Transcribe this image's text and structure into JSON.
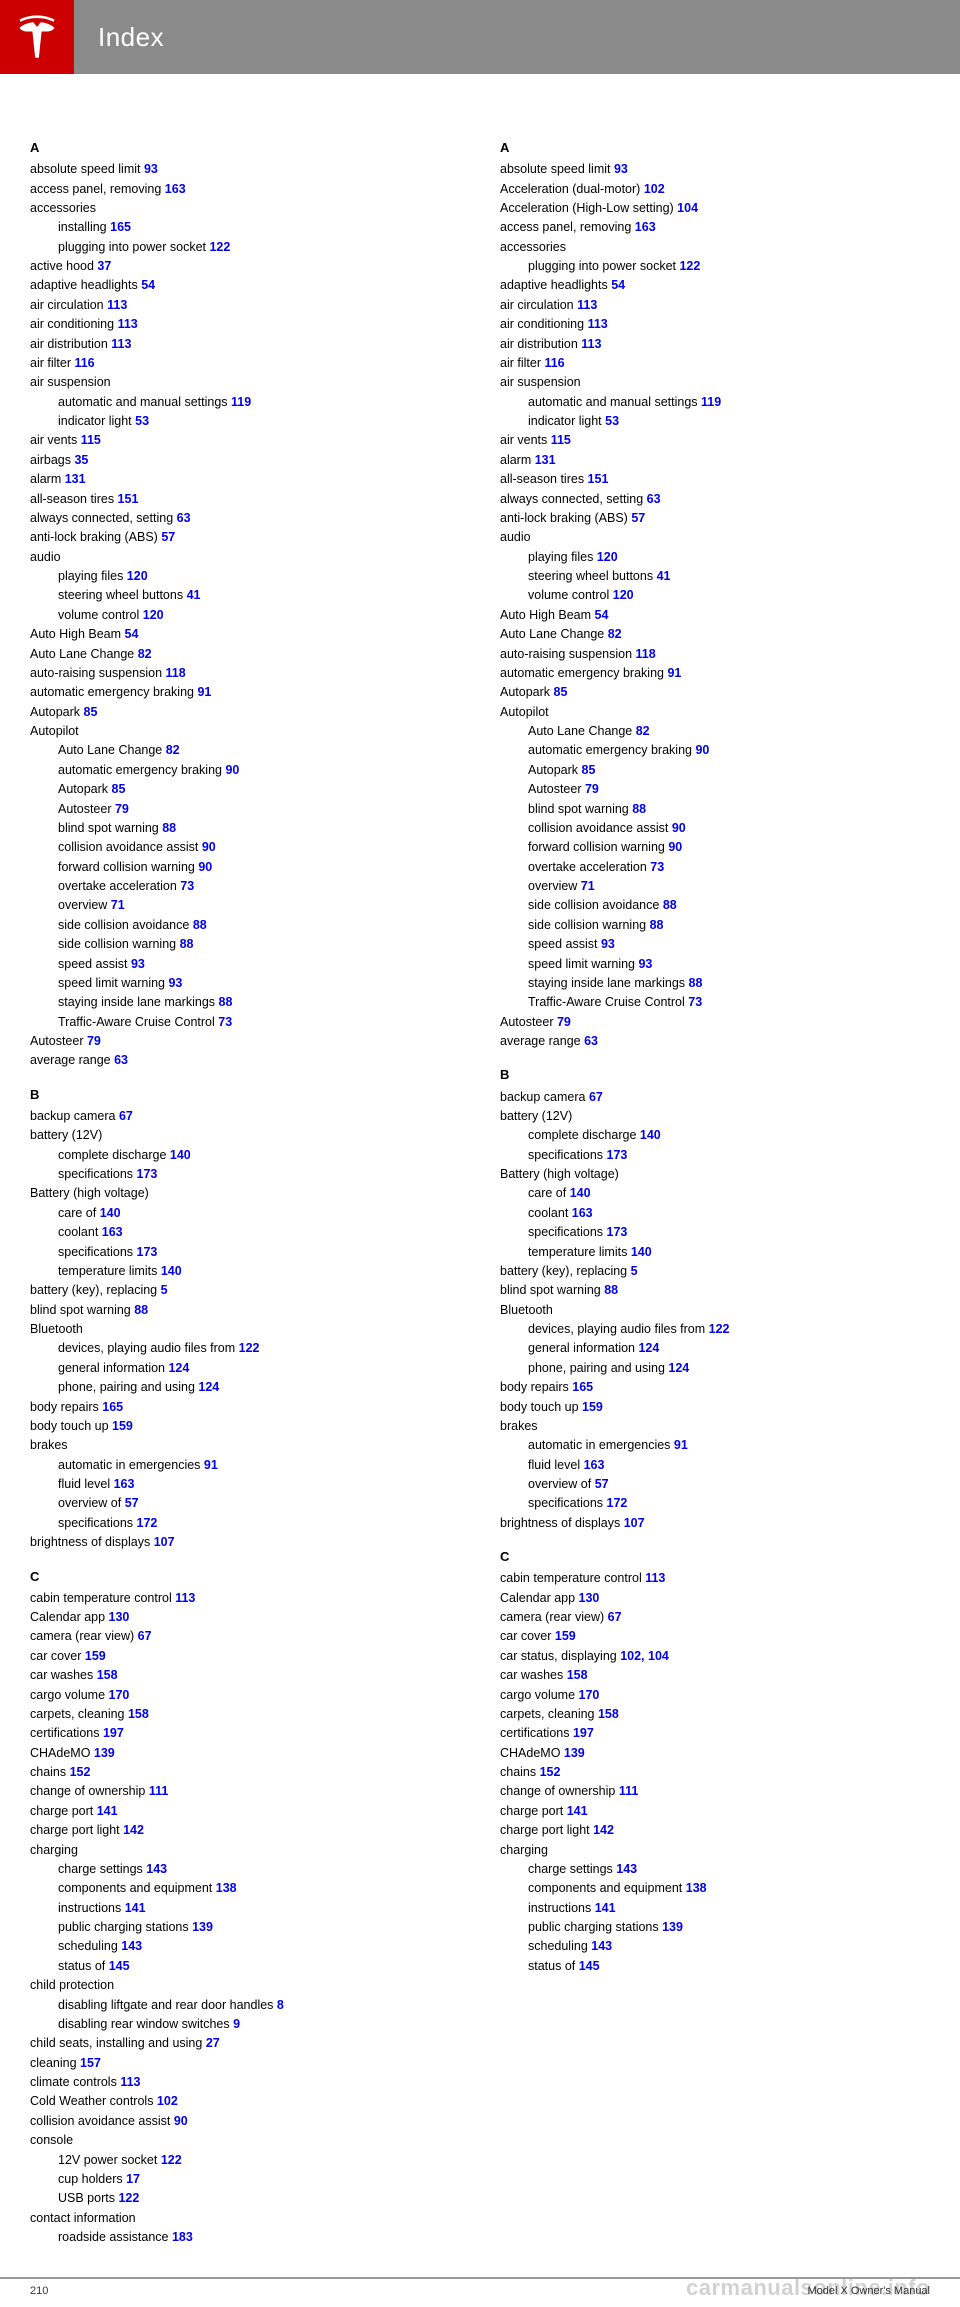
{
  "header": {
    "title": "Index"
  },
  "footer": {
    "page": "210",
    "manual": "Model X Owner's Manual",
    "watermark": "carmanualsonline.info"
  },
  "sections": {
    "A": "A",
    "B": "B",
    "C": "C"
  },
  "col1": [
    {
      "t": "absolute speed limit ",
      "p": "93",
      "cls": ""
    },
    {
      "t": "access panel, removing ",
      "p": "163",
      "cls": ""
    },
    {
      "t": "accessories",
      "cls": ""
    },
    {
      "t": "installing ",
      "p": "165",
      "cls": "indent"
    },
    {
      "t": "plugging into power socket ",
      "p": "122",
      "cls": "indent"
    },
    {
      "t": "active hood ",
      "p": "37",
      "cls": ""
    },
    {
      "t": "adaptive headlights ",
      "p": "54",
      "cls": ""
    },
    {
      "t": "air circulation ",
      "p": "113",
      "cls": ""
    },
    {
      "t": "air conditioning ",
      "p": "113",
      "cls": ""
    },
    {
      "t": "air distribution ",
      "p": "113",
      "cls": ""
    },
    {
      "t": "air filter ",
      "p": "116",
      "cls": ""
    },
    {
      "t": "air suspension",
      "cls": ""
    },
    {
      "t": "automatic and manual settings ",
      "p": "119",
      "cls": "indent"
    },
    {
      "t": "indicator light ",
      "p": "53",
      "cls": "indent"
    },
    {
      "t": "air vents ",
      "p": "115",
      "cls": ""
    },
    {
      "t": "airbags ",
      "p": "35",
      "cls": ""
    },
    {
      "t": "alarm ",
      "p": "131",
      "cls": ""
    },
    {
      "t": "all-season tires ",
      "p": "151",
      "cls": ""
    },
    {
      "t": "always connected, setting ",
      "p": "63",
      "cls": ""
    },
    {
      "t": "anti-lock braking (ABS) ",
      "p": "57",
      "cls": ""
    },
    {
      "t": "audio",
      "cls": ""
    },
    {
      "t": "playing files ",
      "p": "120",
      "cls": "indent"
    },
    {
      "t": "steering wheel buttons ",
      "p": "41",
      "cls": "indent"
    },
    {
      "t": "volume control ",
      "p": "120",
      "cls": "indent"
    },
    {
      "t": "Auto High Beam ",
      "p": "54",
      "cls": ""
    },
    {
      "t": "Auto Lane Change ",
      "p": "82",
      "cls": ""
    },
    {
      "t": "auto-raising suspension ",
      "p": "118",
      "cls": ""
    },
    {
      "t": "automatic emergency braking ",
      "p": "91",
      "cls": ""
    },
    {
      "t": "Autopark ",
      "p": "85",
      "cls": ""
    },
    {
      "t": "Autopilot",
      "cls": ""
    },
    {
      "t": "Auto Lane Change ",
      "p": "82",
      "cls": "indent"
    },
    {
      "t": "automatic emergency braking ",
      "p": "90",
      "cls": "indent"
    },
    {
      "t": "Autopark ",
      "p": "85",
      "cls": "indent"
    },
    {
      "t": "Autosteer ",
      "p": "79",
      "cls": "indent"
    },
    {
      "t": "blind spot warning ",
      "p": "88",
      "cls": "indent"
    },
    {
      "t": "collision avoidance assist ",
      "p": "90",
      "cls": "indent"
    },
    {
      "t": "forward collision warning ",
      "p": "90",
      "cls": "indent"
    },
    {
      "t": "overtake acceleration ",
      "p": "73",
      "cls": "indent"
    },
    {
      "t": "overview ",
      "p": "71",
      "cls": "indent"
    },
    {
      "t": "side collision avoidance ",
      "p": "88",
      "cls": "indent"
    },
    {
      "t": "side collision warning ",
      "p": "88",
      "cls": "indent"
    },
    {
      "t": "speed assist ",
      "p": "93",
      "cls": "indent"
    },
    {
      "t": "speed limit warning ",
      "p": "93",
      "cls": "indent"
    },
    {
      "t": "staying inside lane markings ",
      "p": "88",
      "cls": "indent"
    },
    {
      "t": "Traffic-Aware Cruise Control ",
      "p": "73",
      "cls": "indent"
    },
    {
      "t": "Autosteer ",
      "p": "79",
      "cls": ""
    },
    {
      "t": "average range ",
      "p": "63",
      "cls": ""
    },
    {
      "t": "section",
      "letter": "B"
    },
    {
      "t": "backup camera ",
      "p": "67",
      "cls": ""
    },
    {
      "t": "battery (12V)",
      "cls": ""
    },
    {
      "t": "complete discharge ",
      "p": "140",
      "cls": "indent"
    },
    {
      "t": "specifications ",
      "p": "173",
      "cls": "indent"
    },
    {
      "t": "Battery (high voltage)",
      "cls": ""
    },
    {
      "t": "care of ",
      "p": "140",
      "cls": "indent"
    },
    {
      "t": "coolant ",
      "p": "163",
      "cls": "indent"
    },
    {
      "t": "specifications ",
      "p": "173",
      "cls": "indent"
    },
    {
      "t": "temperature limits ",
      "p": "140",
      "cls": "indent"
    },
    {
      "t": "battery (key), replacing ",
      "p": "5",
      "cls": ""
    },
    {
      "t": "blind spot warning ",
      "p": "88",
      "cls": ""
    },
    {
      "t": "Bluetooth",
      "cls": ""
    },
    {
      "t": "devices, playing audio files from ",
      "p": "122",
      "cls": "indent"
    },
    {
      "t": "general information ",
      "p": "124",
      "cls": "indent"
    },
    {
      "t": "phone, pairing and using ",
      "p": "124",
      "cls": "indent"
    },
    {
      "t": "body repairs ",
      "p": "165",
      "cls": ""
    },
    {
      "t": "body touch up ",
      "p": "159",
      "cls": ""
    },
    {
      "t": "brakes",
      "cls": ""
    },
    {
      "t": "automatic in emergencies ",
      "p": "91",
      "cls": "indent"
    },
    {
      "t": "fluid level ",
      "p": "163",
      "cls": "indent"
    },
    {
      "t": "overview of ",
      "p": "57",
      "cls": "indent"
    },
    {
      "t": "specifications ",
      "p": "172",
      "cls": "indent"
    },
    {
      "t": "brightness of displays ",
      "p": "107",
      "cls": ""
    },
    {
      "t": "section",
      "letter": "C"
    },
    {
      "t": "cabin temperature control ",
      "p": "113",
      "cls": ""
    },
    {
      "t": "Calendar app ",
      "p": "130",
      "cls": ""
    },
    {
      "t": "camera (rear view) ",
      "p": "67",
      "cls": ""
    },
    {
      "t": "car cover ",
      "p": "159",
      "cls": ""
    },
    {
      "t": "car washes ",
      "p": "158",
      "cls": ""
    },
    {
      "t": "cargo volume ",
      "p": "170",
      "cls": ""
    },
    {
      "t": "carpets, cleaning ",
      "p": "158",
      "cls": ""
    },
    {
      "t": "certifications ",
      "p": "197",
      "cls": ""
    },
    {
      "t": "CHAdeMO ",
      "p": "139",
      "cls": ""
    },
    {
      "t": "chains ",
      "p": "152",
      "cls": ""
    },
    {
      "t": "change of ownership ",
      "p": "111",
      "cls": ""
    },
    {
      "t": "charge port ",
      "p": "141",
      "cls": ""
    },
    {
      "t": "charge port light ",
      "p": "142",
      "cls": ""
    },
    {
      "t": "charging",
      "cls": ""
    },
    {
      "t": "charge settings ",
      "p": "143",
      "cls": "indent"
    },
    {
      "t": "components and equipment ",
      "p": "138",
      "cls": "indent"
    },
    {
      "t": "instructions ",
      "p": "141",
      "cls": "indent"
    },
    {
      "t": "public charging stations ",
      "p": "139",
      "cls": "indent"
    },
    {
      "t": "scheduling ",
      "p": "143",
      "cls": "indent"
    },
    {
      "t": "status of ",
      "p": "145",
      "cls": "indent"
    },
    {
      "t": "child protection",
      "cls": ""
    },
    {
      "t": "disabling liftgate and rear door handles ",
      "p": "8",
      "cls": "indent"
    },
    {
      "t": "disabling rear window switches ",
      "p": "9",
      "cls": "indent"
    },
    {
      "t": "child seats, installing and using ",
      "p": "27",
      "cls": ""
    },
    {
      "t": "cleaning ",
      "p": "157",
      "cls": ""
    },
    {
      "t": "climate controls ",
      "p": "113",
      "cls": ""
    },
    {
      "t": "Cold Weather controls ",
      "p": "102",
      "cls": ""
    },
    {
      "t": "collision avoidance assist ",
      "p": "90",
      "cls": ""
    },
    {
      "t": "console",
      "cls": ""
    },
    {
      "t": "12V power socket ",
      "p": "122",
      "cls": "indent"
    },
    {
      "t": "cup holders ",
      "p": "17",
      "cls": "indent"
    },
    {
      "t": "USB ports ",
      "p": "122",
      "cls": "indent"
    },
    {
      "t": "contact information",
      "cls": ""
    },
    {
      "t": "roadside assistance ",
      "p": "183",
      "cls": "indent"
    }
  ],
  "col2": [
    {
      "t": "absolute speed limit ",
      "p": "93",
      "cls": ""
    },
    {
      "t": "Acceleration (dual-motor) ",
      "p": "102",
      "cls": ""
    },
    {
      "t": "Acceleration (High-Low setting) ",
      "p": "104",
      "cls": ""
    },
    {
      "t": "access panel, removing ",
      "p": "163",
      "cls": ""
    },
    {
      "t": "accessories",
      "cls": ""
    },
    {
      "t": "plugging into power socket ",
      "p": "122",
      "cls": "indent"
    },
    {
      "t": "adaptive headlights ",
      "p": "54",
      "cls": ""
    },
    {
      "t": "air circulation ",
      "p": "113",
      "cls": ""
    },
    {
      "t": "air conditioning ",
      "p": "113",
      "cls": ""
    },
    {
      "t": "air distribution ",
      "p": "113",
      "cls": ""
    },
    {
      "t": "air filter ",
      "p": "116",
      "cls": ""
    },
    {
      "t": "air suspension",
      "cls": ""
    },
    {
      "t": "automatic and manual settings ",
      "p": "119",
      "cls": "indent"
    },
    {
      "t": "indicator light ",
      "p": "53",
      "cls": "indent"
    },
    {
      "t": "air vents ",
      "p": "115",
      "cls": ""
    },
    {
      "t": "alarm ",
      "p": "131",
      "cls": ""
    },
    {
      "t": "all-season tires ",
      "p": "151",
      "cls": ""
    },
    {
      "t": "always connected, setting ",
      "p": "63",
      "cls": ""
    },
    {
      "t": "anti-lock braking (ABS) ",
      "p": "57",
      "cls": ""
    },
    {
      "t": "audio",
      "cls": ""
    },
    {
      "t": "playing files ",
      "p": "120",
      "cls": "indent"
    },
    {
      "t": "steering wheel buttons ",
      "p": "41",
      "cls": "indent"
    },
    {
      "t": "volume control ",
      "p": "120",
      "cls": "indent"
    },
    {
      "t": "Auto High Beam ",
      "p": "54",
      "cls": ""
    },
    {
      "t": "Auto Lane Change ",
      "p": "82",
      "cls": ""
    },
    {
      "t": "auto-raising suspension ",
      "p": "118",
      "cls": ""
    },
    {
      "t": "automatic emergency braking ",
      "p": "91",
      "cls": ""
    },
    {
      "t": "Autopark ",
      "p": "85",
      "cls": ""
    },
    {
      "t": "Autopilot",
      "cls": ""
    },
    {
      "t": "Auto Lane Change ",
      "p": "82",
      "cls": "indent"
    },
    {
      "t": "automatic emergency braking ",
      "p": "90",
      "cls": "indent"
    },
    {
      "t": "Autopark ",
      "p": "85",
      "cls": "indent"
    },
    {
      "t": "Autosteer ",
      "p": "79",
      "cls": "indent"
    },
    {
      "t": "blind spot warning ",
      "p": "88",
      "cls": "indent"
    },
    {
      "t": "collision avoidance assist ",
      "p": "90",
      "cls": "indent"
    },
    {
      "t": "forward collision warning ",
      "p": "90",
      "cls": "indent"
    },
    {
      "t": "overtake acceleration ",
      "p": "73",
      "cls": "indent"
    },
    {
      "t": "overview ",
      "p": "71",
      "cls": "indent"
    },
    {
      "t": "side collision avoidance ",
      "p": "88",
      "cls": "indent"
    },
    {
      "t": "side collision warning ",
      "p": "88",
      "cls": "indent"
    },
    {
      "t": "speed assist ",
      "p": "93",
      "cls": "indent"
    },
    {
      "t": "speed limit warning ",
      "p": "93",
      "cls": "indent"
    },
    {
      "t": "staying inside lane markings ",
      "p": "88",
      "cls": "indent"
    },
    {
      "t": "Traffic-Aware Cruise Control ",
      "p": "73",
      "cls": "indent"
    },
    {
      "t": "Autosteer ",
      "p": "79",
      "cls": ""
    },
    {
      "t": "average range ",
      "p": "63",
      "cls": ""
    },
    {
      "t": "section",
      "letter": "B"
    },
    {
      "t": "backup camera ",
      "p": "67",
      "cls": ""
    },
    {
      "t": "battery (12V)",
      "cls": ""
    },
    {
      "t": "complete discharge ",
      "p": "140",
      "cls": "indent"
    },
    {
      "t": "specifications ",
      "p": "173",
      "cls": "indent"
    },
    {
      "t": "Battery (high voltage)",
      "cls": ""
    },
    {
      "t": "care of ",
      "p": "140",
      "cls": "indent"
    },
    {
      "t": "coolant ",
      "p": "163",
      "cls": "indent"
    },
    {
      "t": "specifications ",
      "p": "173",
      "cls": "indent"
    },
    {
      "t": "temperature limits ",
      "p": "140",
      "cls": "indent"
    },
    {
      "t": "battery (key), replacing ",
      "p": "5",
      "cls": ""
    },
    {
      "t": "blind spot warning ",
      "p": "88",
      "cls": ""
    },
    {
      "t": "Bluetooth",
      "cls": ""
    },
    {
      "t": "devices, playing audio files from ",
      "p": "122",
      "cls": "indent"
    },
    {
      "t": "general information ",
      "p": "124",
      "cls": "indent"
    },
    {
      "t": "phone, pairing and using ",
      "p": "124",
      "cls": "indent"
    },
    {
      "t": "body repairs ",
      "p": "165",
      "cls": ""
    },
    {
      "t": "body touch up ",
      "p": "159",
      "cls": ""
    },
    {
      "t": "brakes",
      "cls": ""
    },
    {
      "t": "automatic in emergencies ",
      "p": "91",
      "cls": "indent"
    },
    {
      "t": "fluid level ",
      "p": "163",
      "cls": "indent"
    },
    {
      "t": "overview of ",
      "p": "57",
      "cls": "indent"
    },
    {
      "t": "specifications ",
      "p": "172",
      "cls": "indent"
    },
    {
      "t": "brightness of displays ",
      "p": "107",
      "cls": ""
    },
    {
      "t": "section",
      "letter": "C"
    },
    {
      "t": "cabin temperature control ",
      "p": "113",
      "cls": ""
    },
    {
      "t": "Calendar app ",
      "p": "130",
      "cls": ""
    },
    {
      "t": "camera (rear view) ",
      "p": "67",
      "cls": ""
    },
    {
      "t": "car cover ",
      "p": "159",
      "cls": ""
    },
    {
      "t": "car status, displaying ",
      "p": "102, 104",
      "cls": ""
    },
    {
      "t": "car washes ",
      "p": "158",
      "cls": ""
    },
    {
      "t": "cargo volume ",
      "p": "170",
      "cls": ""
    },
    {
      "t": "carpets, cleaning ",
      "p": "158",
      "cls": ""
    },
    {
      "t": "certifications ",
      "p": "197",
      "cls": ""
    },
    {
      "t": "CHAdeMO ",
      "p": "139",
      "cls": ""
    },
    {
      "t": "chains ",
      "p": "152",
      "cls": ""
    },
    {
      "t": "change of ownership ",
      "p": "111",
      "cls": ""
    },
    {
      "t": "charge port ",
      "p": "141",
      "cls": ""
    },
    {
      "t": "charge port light ",
      "p": "142",
      "cls": ""
    },
    {
      "t": "charging",
      "cls": ""
    },
    {
      "t": "charge settings ",
      "p": "143",
      "cls": "indent"
    },
    {
      "t": "components and equipment ",
      "p": "138",
      "cls": "indent"
    },
    {
      "t": "instructions ",
      "p": "141",
      "cls": "indent"
    },
    {
      "t": "public charging stations ",
      "p": "139",
      "cls": "indent"
    },
    {
      "t": "scheduling ",
      "p": "143",
      "cls": "indent"
    },
    {
      "t": "status of ",
      "p": "145",
      "cls": "indent"
    }
  ]
}
